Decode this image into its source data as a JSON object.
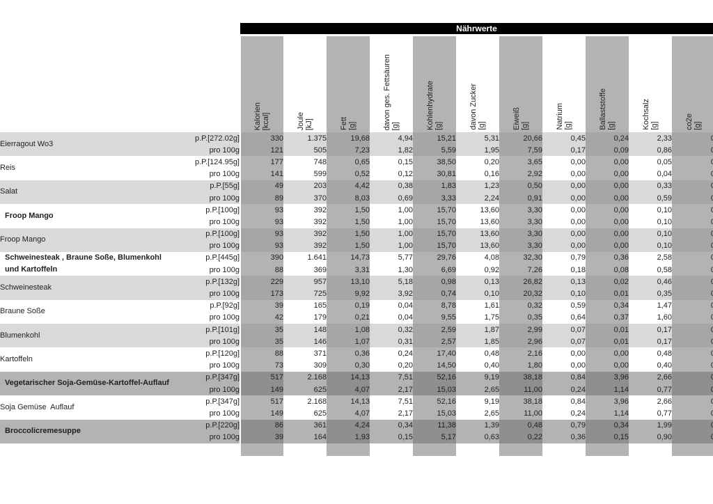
{
  "title": "Nährwerte",
  "colors": {
    "bar_bg": "#000000",
    "bar_text": "#ffffff",
    "column_stripe": "#b3b3b3",
    "row_light": "#d9d9d9",
    "row_dark": "#b3b3b3",
    "intersect_light": "#a6a6a6",
    "intersect_dark": "#8f8f8f",
    "text": "#1f1f1f"
  },
  "table": {
    "per100_label": "pro 100g",
    "columns": [
      {
        "label": "Kalorien\n[kcal]",
        "shade": "gray"
      },
      {
        "label": "Joule\n[kJ]",
        "shade": "white"
      },
      {
        "label": "Fett\n[g]",
        "shade": "gray"
      },
      {
        "label": "davon ges. Fettsäuren\n[g]",
        "shade": "white"
      },
      {
        "label": "Kohlenhydrate\n[g]",
        "shade": "gray"
      },
      {
        "label": "davon Zucker\n[g]",
        "shade": "white"
      },
      {
        "label": "Eiweiß\n[g]",
        "shade": "gray"
      },
      {
        "label": "Natrium\n[g]",
        "shade": "white"
      },
      {
        "label": "Ballaststoffe\n[g]",
        "shade": "gray"
      },
      {
        "label": "Kochsalz\n[g]",
        "shade": "white"
      },
      {
        "label": "co2e\n[g]",
        "shade": "gray"
      }
    ],
    "rows": [
      {
        "name": "Eierragout Wo3",
        "bold": false,
        "shade": "light",
        "portion": "p.P.[272.02g]",
        "values_pp": [
          "330",
          "1.375",
          "19,68",
          "4,94",
          "15,21",
          "5,31",
          "20,66",
          "0,45",
          "0,24",
          "2,33",
          "0"
        ],
        "values_100": [
          "121",
          "505",
          "7,23",
          "1,82",
          "5,59",
          "1,95",
          "7,59",
          "0,17",
          "0,09",
          "0,86",
          "0"
        ]
      },
      {
        "name": "Reis",
        "bold": false,
        "shade": "white",
        "portion": "p.P.[124.95g]",
        "values_pp": [
          "177",
          "748",
          "0,65",
          "0,15",
          "38,50",
          "0,20",
          "3,65",
          "0,00",
          "0,00",
          "0,05",
          "0"
        ],
        "values_100": [
          "141",
          "599",
          "0,52",
          "0,12",
          "30,81",
          "0,16",
          "2,92",
          "0,00",
          "0,00",
          "0,04",
          "0"
        ]
      },
      {
        "name": "Salat",
        "bold": false,
        "shade": "light",
        "portion": "p.P.[55g]",
        "values_pp": [
          "49",
          "203",
          "4,42",
          "0,38",
          "1,83",
          "1,23",
          "0,50",
          "0,00",
          "0,00",
          "0,33",
          "0"
        ],
        "values_100": [
          "89",
          "370",
          "8,03",
          "0,69",
          "3,33",
          "2,24",
          "0,91",
          "0,00",
          "0,00",
          "0,59",
          "0"
        ]
      },
      {
        "name": "Froop Mango",
        "bold": true,
        "shade": "white",
        "portion": "p.P.[100g]",
        "values_pp": [
          "93",
          "392",
          "1,50",
          "1,00",
          "15,70",
          "13,60",
          "3,30",
          "0,00",
          "0,00",
          "0,10",
          "0"
        ],
        "values_100": [
          "93",
          "392",
          "1,50",
          "1,00",
          "15,70",
          "13,60",
          "3,30",
          "0,00",
          "0,00",
          "0,10",
          "0"
        ]
      },
      {
        "name": "Froop Mango",
        "bold": false,
        "shade": "light",
        "portion": "p.P.[100g]",
        "values_pp": [
          "93",
          "392",
          "1,50",
          "1,00",
          "15,70",
          "13,60",
          "3,30",
          "0,00",
          "0,00",
          "0,10",
          "0"
        ],
        "values_100": [
          "93",
          "392",
          "1,50",
          "1,00",
          "15,70",
          "13,60",
          "3,30",
          "0,00",
          "0,00",
          "0,10",
          "0"
        ]
      },
      {
        "name": "Schweinesteak , Braune Soße, Blumenkohl\nund Kartoffeln",
        "bold": true,
        "shade": "white",
        "portion": "p.P.[445g]",
        "values_pp": [
          "390",
          "1.641",
          "14,73",
          "5,77",
          "29,76",
          "4,08",
          "32,30",
          "0,79",
          "0,36",
          "2,58",
          "0"
        ],
        "values_100": [
          "88",
          "369",
          "3,31",
          "1,30",
          "6,69",
          "0,92",
          "7,26",
          "0,18",
          "0,08",
          "0,58",
          "0"
        ]
      },
      {
        "name": "Schweinesteak",
        "bold": false,
        "shade": "light",
        "portion": "p.P.[132g]",
        "values_pp": [
          "229",
          "957",
          "13,10",
          "5,18",
          "0,98",
          "0,13",
          "26,82",
          "0,13",
          "0,02",
          "0,46",
          "0"
        ],
        "values_100": [
          "173",
          "725",
          "9,92",
          "3,92",
          "0,74",
          "0,10",
          "20,32",
          "0,10",
          "0,01",
          "0,35",
          "0"
        ]
      },
      {
        "name": "Braune Soße",
        "bold": false,
        "shade": "white",
        "portion": "p.P.[92g]",
        "values_pp": [
          "39",
          "165",
          "0,19",
          "0,04",
          "8,78",
          "1,61",
          "0,32",
          "0,59",
          "0,34",
          "1,47",
          "0"
        ],
        "values_100": [
          "42",
          "179",
          "0,21",
          "0,04",
          "9,55",
          "1,75",
          "0,35",
          "0,64",
          "0,37",
          "1,60",
          "0"
        ]
      },
      {
        "name": "Blumenkohl",
        "bold": false,
        "shade": "light",
        "portion": "p.P.[101g]",
        "values_pp": [
          "35",
          "148",
          "1,08",
          "0,32",
          "2,59",
          "1,87",
          "2,99",
          "0,07",
          "0,01",
          "0,17",
          "0"
        ],
        "values_100": [
          "35",
          "146",
          "1,07",
          "0,31",
          "2,57",
          "1,85",
          "2,96",
          "0,07",
          "0,01",
          "0,17",
          "0"
        ]
      },
      {
        "name": "Kartoffeln",
        "bold": false,
        "shade": "white",
        "portion": "p.P.[120g]",
        "values_pp": [
          "88",
          "371",
          "0,36",
          "0,24",
          "17,40",
          "0,48",
          "2,16",
          "0,00",
          "0,00",
          "0,48",
          "0"
        ],
        "values_100": [
          "73",
          "309",
          "0,30",
          "0,20",
          "14,50",
          "0,40",
          "1,80",
          "0,00",
          "0,00",
          "0,40",
          "0"
        ]
      },
      {
        "name": "Vegetarischer Soja-Gemüse-Kartoffel-Auflauf",
        "bold": true,
        "shade": "dark",
        "portion": "p.P.[347g]",
        "values_pp": [
          "517",
          "2.168",
          "14,13",
          "7,51",
          "52,16",
          "9,19",
          "38,18",
          "0,84",
          "3,96",
          "2,66",
          "0"
        ],
        "values_100": [
          "149",
          "625",
          "4,07",
          "2,17",
          "15,03",
          "2,65",
          "11,00",
          "0,24",
          "1,14",
          "0,77",
          "0"
        ]
      },
      {
        "name": "Soja Gemüse  Auflauf",
        "bold": false,
        "shade": "white",
        "portion": "p.P.[347g]",
        "values_pp": [
          "517",
          "2.168",
          "14,13",
          "7,51",
          "52,16",
          "9,19",
          "38,18",
          "0,84",
          "3,96",
          "2,66",
          "0"
        ],
        "values_100": [
          "149",
          "625",
          "4,07",
          "2,17",
          "15,03",
          "2,65",
          "11,00",
          "0,24",
          "1,14",
          "0,77",
          "0"
        ]
      },
      {
        "name": "Broccolicremesuppe",
        "bold": true,
        "shade": "dark",
        "portion": "p.P.[220g]",
        "values_pp": [
          "86",
          "361",
          "4,24",
          "0,34",
          "11,38",
          "1,39",
          "0,48",
          "0,79",
          "0,34",
          "1,99",
          "0"
        ],
        "values_100": [
          "39",
          "164",
          "1,93",
          "0,15",
          "5,17",
          "0,63",
          "0,22",
          "0,36",
          "0,15",
          "0,90",
          "0"
        ]
      }
    ]
  }
}
